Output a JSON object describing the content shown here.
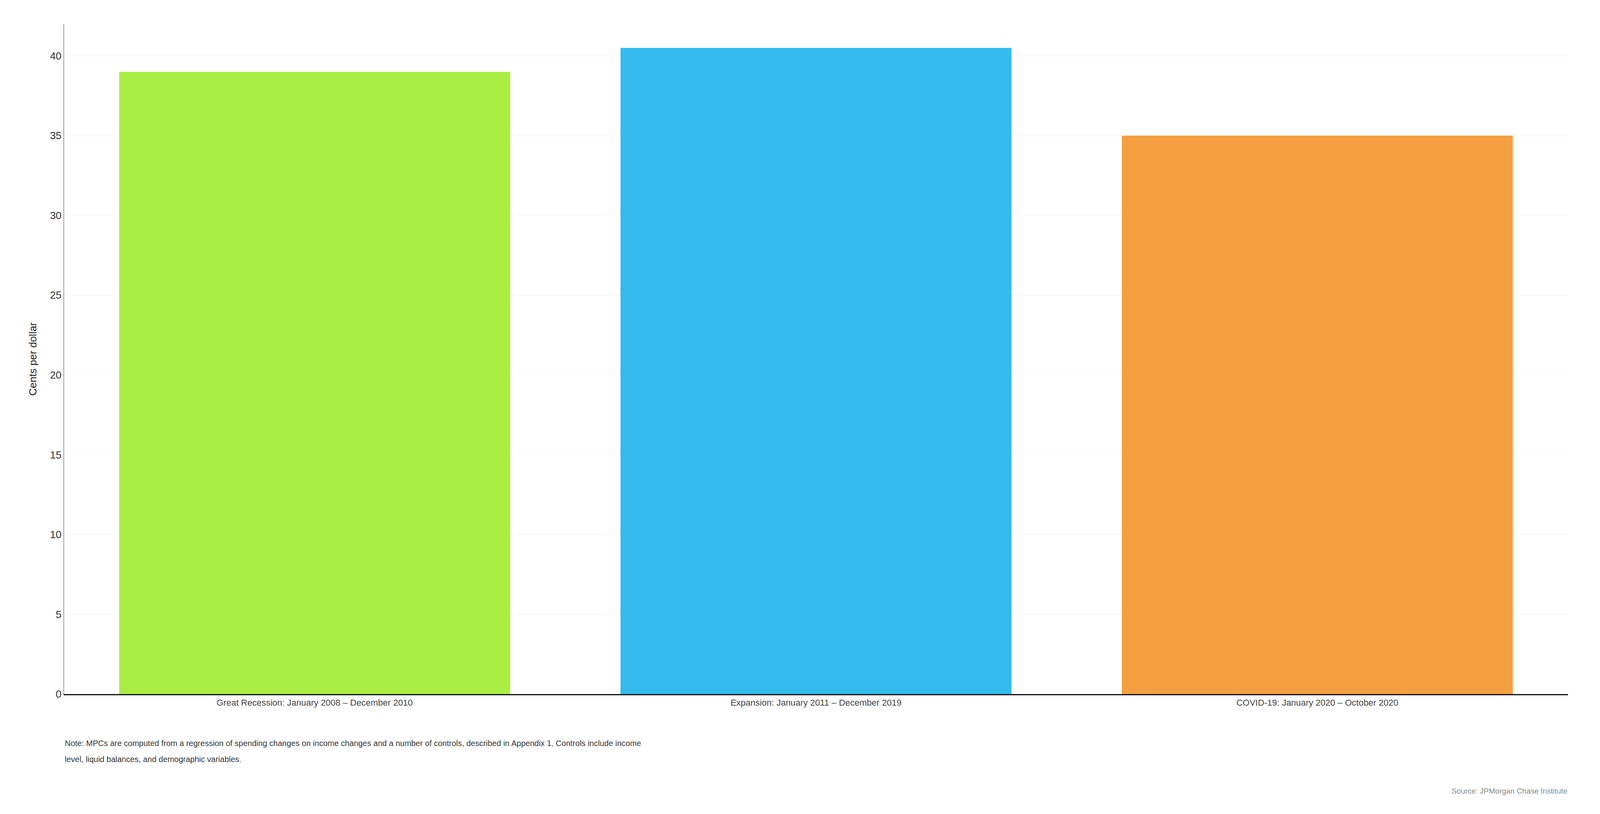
{
  "chart_data": {
    "type": "bar",
    "categories": [
      "Great Recession: January 2008 – December 2010",
      "Expansion: January 2011 – December 2019",
      "COVID-19: January 2020 – October 2020"
    ],
    "values": [
      39.0,
      40.5,
      35.0
    ],
    "colors": [
      "#aaee44",
      "#33bbee",
      "#f5a040"
    ],
    "ylabel": "Cents per dollar",
    "ylim": [
      0,
      42
    ],
    "yticks": [
      0,
      5,
      10,
      15,
      20,
      25,
      30,
      35,
      40
    ],
    "grid": true,
    "annotations": [
      "Note: MPCs are computed from a regression of spending changes on income changes and a number of controls, described in Appendix 1. Controls include income",
      "level, liquid balances, and demographic variables.",
      "Source: JPMorgan Chase Institute"
    ]
  }
}
